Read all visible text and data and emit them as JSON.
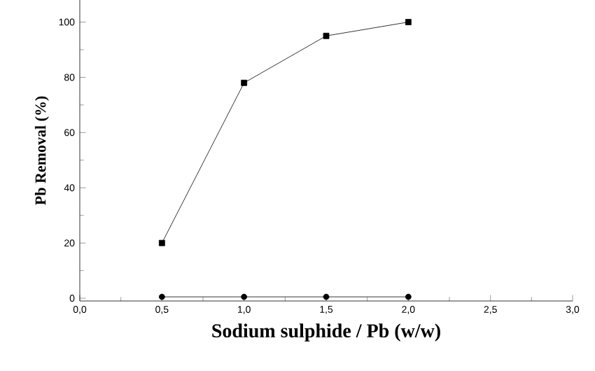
{
  "chart_data": {
    "type": "line",
    "xlabel": "Sodium sulphide / Pb (w/w)",
    "ylabel": "Pb Removal (%)",
    "x": [
      0.5,
      1.0,
      1.5,
      2.0
    ],
    "series": [
      {
        "color": "#000000",
        "values": [
          20,
          78,
          95,
          100
        ],
        "marker": "square"
      },
      {
        "color": "#000000",
        "values": [
          0.5,
          0.5,
          0.5,
          0.5
        ],
        "marker": "circle"
      }
    ],
    "xlim": [
      0,
      3
    ],
    "ylim": [
      -1,
      108
    ],
    "xticks": [
      {
        "value": 0,
        "label": "0,0"
      },
      {
        "value": 0.5,
        "label": "0,5"
      },
      {
        "value": 1,
        "label": "1,0"
      },
      {
        "value": 1.5,
        "label": "1,5"
      },
      {
        "value": 2,
        "label": "2,0"
      },
      {
        "value": 2.5,
        "label": "2,5"
      },
      {
        "value": 3,
        "label": "3,0"
      }
    ],
    "yticks": [
      0,
      20,
      40,
      60,
      80,
      100
    ],
    "grid": false,
    "line_style": "solid"
  }
}
